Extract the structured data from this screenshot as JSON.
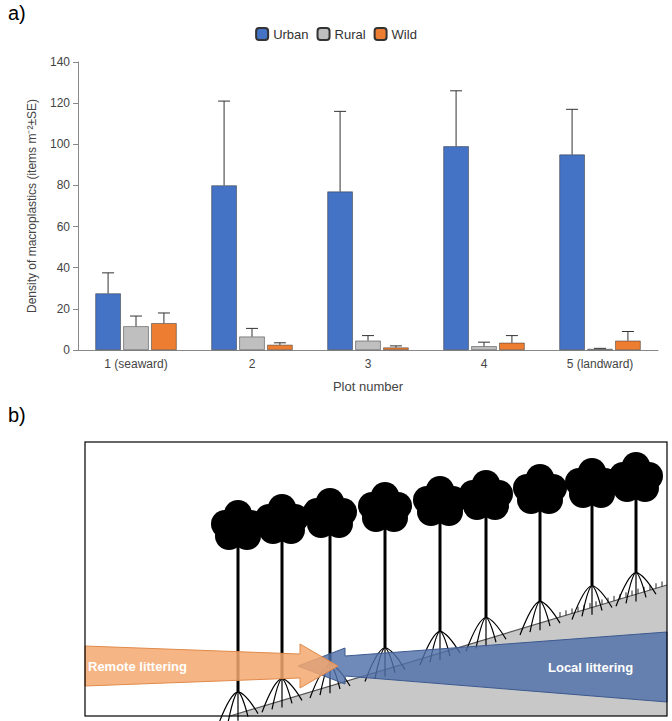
{
  "chart_data": {
    "type": "bar",
    "categories": [
      "1 (seaward)",
      "2",
      "3",
      "4",
      "5 (landward)"
    ],
    "series": [
      {
        "name": "Urban",
        "color": "#4472c4",
        "values": [
          27.5,
          80,
          77,
          99,
          95
        ],
        "errors": [
          10,
          41,
          39,
          27,
          22
        ]
      },
      {
        "name": "Rural",
        "color": "#bfbfbf",
        "values": [
          11.5,
          6.5,
          4.5,
          1.8,
          0.5
        ],
        "errors": [
          5,
          4,
          2.5,
          2,
          0.3
        ]
      },
      {
        "name": "Wild",
        "color": "#ed7d31",
        "values": [
          13,
          2.5,
          1.2,
          3.5,
          4.5
        ],
        "errors": [
          5,
          1,
          0.8,
          3.5,
          4.5
        ]
      }
    ],
    "x_label": "Plot number",
    "y_label": "Density of macroplastics (items m⁻²±SE)",
    "ylim": [
      0,
      140
    ],
    "yticks": [
      0,
      20,
      40,
      60,
      80,
      100,
      120,
      140
    ],
    "grid": false,
    "legend": "top"
  },
  "panel_labels": [
    "a)",
    "b)"
  ],
  "diagram": {
    "arrows": [
      {
        "label": "Remote littering"
      },
      {
        "label": "Local littering"
      }
    ]
  }
}
